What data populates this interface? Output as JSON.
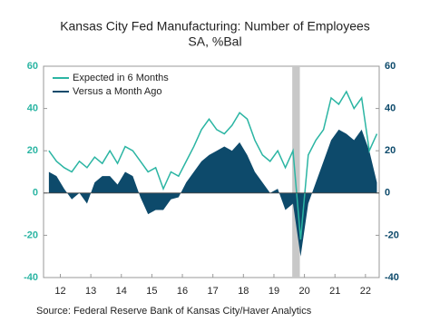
{
  "chart_data": {
    "type": "line-area",
    "title": "Kansas City Fed Manufacturing: Number of Employees",
    "subtitle": "SA, %Bal",
    "source": "Source:  Federal Reserve Bank of Kansas City/Haver Analytics",
    "x": [
      12.125,
      12.375,
      12.625,
      12.875,
      13.125,
      13.375,
      13.625,
      13.875,
      14.125,
      14.375,
      14.625,
      14.875,
      15.125,
      15.375,
      15.625,
      15.875,
      16.125,
      16.375,
      16.625,
      16.875,
      17.125,
      17.375,
      17.625,
      17.875,
      18.125,
      18.375,
      18.625,
      18.875,
      19.125,
      19.375,
      19.625,
      19.875,
      20.125,
      20.375,
      20.625,
      20.875,
      21.125,
      21.375,
      21.625,
      21.875,
      22.125,
      22.375,
      22.625,
      22.875
    ],
    "series": [
      {
        "name": "Expected in 6 Months",
        "color": "#2bb5a3",
        "style": "line",
        "values": [
          20,
          15,
          12,
          10,
          15,
          12,
          17,
          14,
          20,
          14,
          22,
          20,
          15,
          10,
          12,
          2,
          10,
          8,
          15,
          22,
          30,
          35,
          30,
          28,
          32,
          38,
          35,
          25,
          18,
          15,
          20,
          12,
          20,
          -22,
          18,
          25,
          30,
          45,
          42,
          48,
          40,
          45,
          20,
          28
        ]
      },
      {
        "name": "Versus a Month Ago",
        "color": "#0d4a6b",
        "style": "area",
        "values": [
          10,
          8,
          2,
          -3,
          0,
          -5,
          5,
          8,
          8,
          4,
          10,
          8,
          -2,
          -10,
          -8,
          -8,
          -3,
          -2,
          5,
          10,
          15,
          18,
          20,
          22,
          20,
          24,
          18,
          10,
          5,
          0,
          2,
          -8,
          -5,
          -30,
          -5,
          5,
          15,
          25,
          30,
          28,
          25,
          30,
          20,
          5
        ]
      }
    ],
    "xlim": [
      11.95,
      22.95
    ],
    "xticks": [
      {
        "value": 12.5,
        "label": "12"
      },
      {
        "value": 13.5,
        "label": "13"
      },
      {
        "value": 14.5,
        "label": "14"
      },
      {
        "value": 15.5,
        "label": "15"
      },
      {
        "value": 16.5,
        "label": "16"
      },
      {
        "value": 17.5,
        "label": "17"
      },
      {
        "value": 18.5,
        "label": "18"
      },
      {
        "value": 19.5,
        "label": "19"
      },
      {
        "value": 20.5,
        "label": "20"
      },
      {
        "value": 21.5,
        "label": "21"
      },
      {
        "value": 22.5,
        "label": "22"
      }
    ],
    "ylim": [
      -40,
      60
    ],
    "yticks": [
      -40,
      -20,
      0,
      20,
      40,
      60
    ],
    "y2lim": [
      -40,
      60
    ],
    "y2ticks": [
      -40,
      -20,
      0,
      20,
      40,
      60
    ],
    "shaded_x": [
      20.1,
      20.35
    ],
    "legend": "top-left"
  }
}
